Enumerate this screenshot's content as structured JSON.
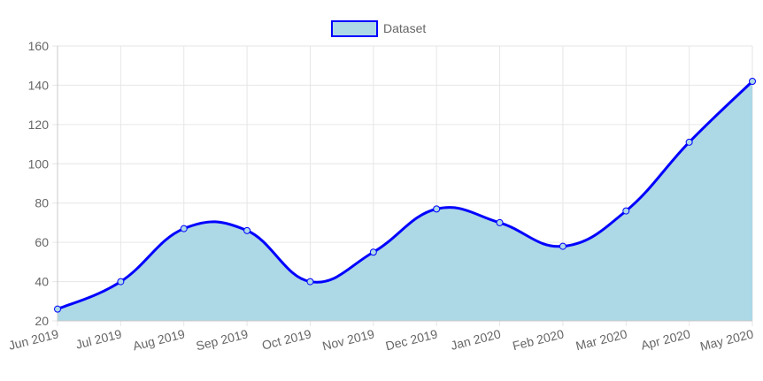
{
  "chart_data": {
    "type": "area",
    "title": "",
    "xlabel": "",
    "ylabel": "",
    "categories": [
      "Jun 2019",
      "Jul 2019",
      "Aug 2019",
      "Sep 2019",
      "Oct 2019",
      "Nov 2019",
      "Dec 2019",
      "Jan 2020",
      "Feb 2020",
      "Mar 2020",
      "Apr 2020",
      "May 2020"
    ],
    "series": [
      {
        "name": "Dataset",
        "values": [
          26,
          40,
          67,
          66,
          40,
          55,
          77,
          70,
          58,
          76,
          111,
          142
        ]
      }
    ],
    "ylim": [
      20,
      160
    ],
    "yticks": [
      20,
      40,
      60,
      80,
      100,
      120,
      140,
      160
    ],
    "ytick_labels": [
      "20",
      "40",
      "60",
      "80",
      "100",
      "120",
      "140",
      "160"
    ],
    "grid": true,
    "legend": "top-center"
  },
  "colors": {
    "line": "#0000ff",
    "fill": "#add8e6",
    "grid": "#e6e6e6",
    "axis": "#c8c8c8",
    "point_fill": "#add8e6",
    "text": "#666666"
  }
}
